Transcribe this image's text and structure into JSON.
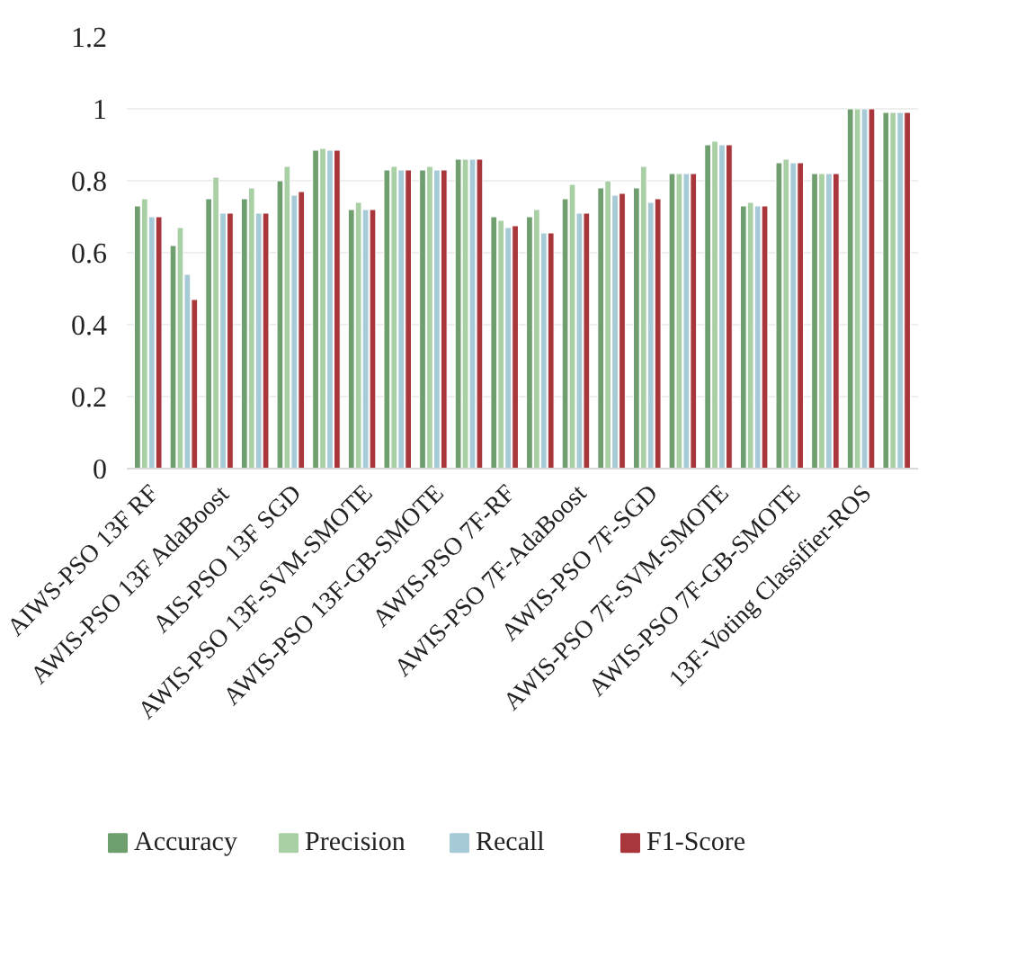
{
  "chart_data": {
    "type": "bar",
    "categories": [
      "AIWS-PSO 13F RF",
      null,
      "AWIS-PSO 13F AdaBoost",
      null,
      "AIS-PSO 13F SGD",
      null,
      "AWIS-PSO 13F-SVM-SMOTE",
      null,
      "AWIS-PSO 13F-GB-SMOTE",
      null,
      "AWIS-PSO 7F-RF",
      null,
      "AWIS-PSO 7F-AdaBoost",
      null,
      "AWIS-PSO 7F-SGD",
      null,
      "AWIS-PSO 7F-SVM-SMOTE",
      null,
      "AWIS-PSO 7F-GB-SMOTE",
      null,
      "13F-Voting Classifier-ROS",
      null
    ],
    "series": [
      {
        "name": "Accuracy",
        "color": "#6f9e6f",
        "values": [
          0.73,
          0.62,
          0.75,
          0.75,
          0.8,
          0.885,
          0.72,
          0.83,
          0.83,
          0.86,
          0.7,
          0.7,
          0.75,
          0.78,
          0.78,
          0.82,
          0.9,
          0.73,
          0.85,
          0.82,
          1.0,
          0.99
        ]
      },
      {
        "name": "Precision",
        "color": "#a9cfa4",
        "values": [
          0.75,
          0.67,
          0.81,
          0.78,
          0.84,
          0.89,
          0.74,
          0.84,
          0.84,
          0.86,
          0.69,
          0.72,
          0.79,
          0.8,
          0.84,
          0.82,
          0.91,
          0.74,
          0.86,
          0.82,
          1.0,
          0.99
        ]
      },
      {
        "name": "Recall",
        "color": "#a6cad6",
        "values": [
          0.7,
          0.54,
          0.71,
          0.71,
          0.76,
          0.885,
          0.72,
          0.83,
          0.83,
          0.86,
          0.67,
          0.655,
          0.71,
          0.76,
          0.74,
          0.82,
          0.9,
          0.73,
          0.85,
          0.82,
          1.0,
          0.99
        ]
      },
      {
        "name": "F1-Score",
        "color": "#a8363b",
        "values": [
          0.7,
          0.47,
          0.71,
          0.71,
          0.77,
          0.885,
          0.72,
          0.83,
          0.83,
          0.86,
          0.675,
          0.655,
          0.71,
          0.765,
          0.75,
          0.82,
          0.9,
          0.73,
          0.85,
          0.82,
          1.0,
          0.99
        ]
      }
    ],
    "ylim": [
      0,
      1.2
    ],
    "yticks": [
      0,
      0.2,
      0.4,
      0.6,
      0.8,
      1,
      1.2
    ],
    "grid": "y",
    "legend": "bottom"
  }
}
